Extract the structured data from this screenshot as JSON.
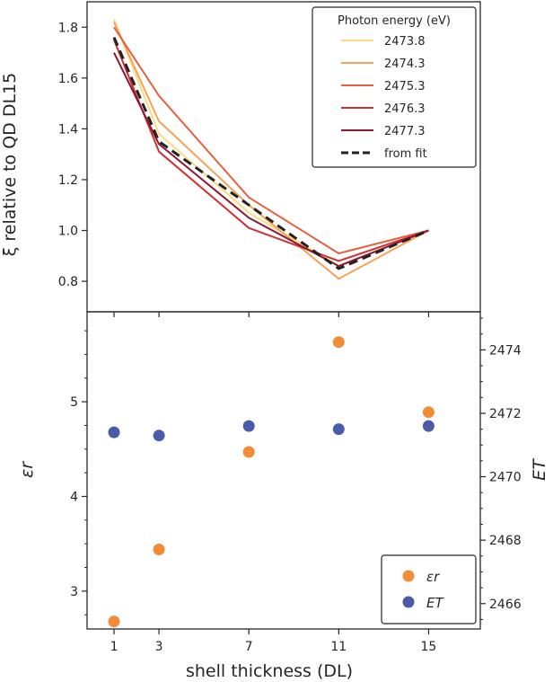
{
  "chart_data": [
    {
      "type": "line",
      "panel": "top",
      "ylabel": "ξ relative to QD DL15",
      "ylim": [
        0.68,
        1.9
      ],
      "y_ticks": [
        0.8,
        1.0,
        1.2,
        1.4,
        1.6,
        1.8
      ],
      "y_tick_labels": [
        "0.8",
        "1.0",
        "1.2",
        "1.4",
        "1.6",
        "1.8"
      ],
      "x": [
        1,
        3,
        7,
        11,
        15
      ],
      "legend_title": "Photon energy (eV)",
      "legend_position": "top-right",
      "series": [
        {
          "name": "2473.8",
          "color": "#f9dc7b",
          "dash": "",
          "values": [
            1.83,
            1.38,
            1.07,
            0.86,
            1.0
          ]
        },
        {
          "name": "2474.3",
          "color": "#f5a457",
          "dash": "",
          "values": [
            1.82,
            1.43,
            1.1,
            0.81,
            1.0
          ]
        },
        {
          "name": "2475.3",
          "color": "#e8603e",
          "dash": "",
          "values": [
            1.8,
            1.53,
            1.13,
            0.91,
            1.0
          ]
        },
        {
          "name": "2476.3",
          "color": "#d12f32",
          "dash": "",
          "values": [
            1.75,
            1.31,
            1.01,
            0.88,
            1.0
          ]
        },
        {
          "name": "2477.3",
          "color": "#8e1733",
          "dash": "",
          "values": [
            1.7,
            1.34,
            1.05,
            0.86,
            1.0
          ]
        },
        {
          "name": "from fit",
          "color": "#222222",
          "dash": "10,6",
          "values": [
            1.76,
            1.35,
            1.1,
            0.85,
            1.0
          ]
        }
      ]
    },
    {
      "type": "scatter",
      "panel": "bottom",
      "xlabel": "shell thickness (DL)",
      "x_ticks": [
        1,
        3,
        7,
        11,
        15
      ],
      "x_tick_labels": [
        "1",
        "3",
        "7",
        "11",
        "15"
      ],
      "xlim": [
        -0.2,
        17.3
      ],
      "ylabel_left": "εr",
      "ylim_left": [
        2.6,
        5.95
      ],
      "y_ticks_left": [
        3,
        4,
        5
      ],
      "y_tick_labels_left": [
        "3",
        "4",
        "5"
      ],
      "ylabel_right": "ET",
      "ylim_right": [
        2465.2,
        2475.2
      ],
      "y_ticks_right": [
        2466,
        2468,
        2470,
        2472,
        2474
      ],
      "y_tick_labels_right": [
        "2466",
        "2468",
        "2470",
        "2472",
        "2474"
      ],
      "legend_position": "bottom-right",
      "series": [
        {
          "name": "εr",
          "axis": "left",
          "color": "#f28c38",
          "x": [
            1,
            3,
            7,
            11,
            15
          ],
          "values": [
            2.68,
            3.44,
            4.47,
            5.63,
            4.89
          ]
        },
        {
          "name": "ET",
          "axis": "right",
          "color": "#4a5ca8",
          "x": [
            1,
            3,
            7,
            11,
            15
          ],
          "values": [
            2471.4,
            2471.3,
            2471.6,
            2471.5,
            2471.6
          ]
        }
      ]
    }
  ]
}
